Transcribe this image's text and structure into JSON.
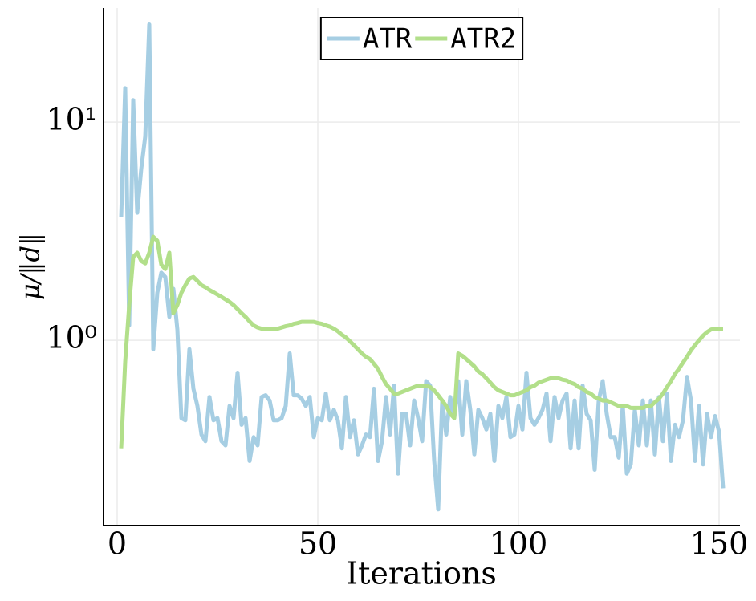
{
  "chart_data": {
    "type": "line",
    "xlabel": "Iterations",
    "ylabel": "μ/‖d‖",
    "x": [
      1,
      2,
      3,
      4,
      5,
      6,
      7,
      8,
      9,
      10,
      11,
      12,
      13,
      14,
      15,
      16,
      17,
      18,
      19,
      20,
      21,
      22,
      23,
      24,
      25,
      26,
      27,
      28,
      29,
      30,
      31,
      32,
      33,
      34,
      35,
      36,
      37,
      38,
      39,
      40,
      41,
      42,
      43,
      44,
      45,
      46,
      47,
      48,
      49,
      50,
      51,
      52,
      53,
      54,
      55,
      56,
      57,
      58,
      59,
      60,
      61,
      62,
      63,
      64,
      65,
      66,
      67,
      68,
      69,
      70,
      71,
      72,
      73,
      74,
      75,
      76,
      77,
      78,
      79,
      80,
      81,
      82,
      83,
      84,
      85,
      86,
      87,
      88,
      89,
      90,
      91,
      92,
      93,
      94,
      95,
      96,
      97,
      98,
      99,
      100,
      101,
      102,
      103,
      104,
      105,
      106,
      107,
      108,
      109,
      110,
      111,
      112,
      113,
      114,
      115,
      116,
      117,
      118,
      119,
      120,
      121,
      122,
      123,
      124,
      125,
      126,
      127,
      128,
      129,
      130,
      131,
      132,
      133,
      134,
      135,
      136,
      137,
      138,
      139,
      140,
      141,
      142,
      143,
      144,
      145,
      146,
      147,
      148,
      149,
      150,
      151
    ],
    "series": [
      {
        "name": "ATR",
        "color": "#a6cee3",
        "values": [
          3.68,
          14.3,
          1.17,
          12.6,
          3.84,
          6.1,
          8.6,
          28,
          0.91,
          1.65,
          2.04,
          1.95,
          1.28,
          1.72,
          1.12,
          0.44,
          0.43,
          0.91,
          0.6,
          0.5,
          0.37,
          0.345,
          0.55,
          0.43,
          0.44,
          0.345,
          0.33,
          0.5,
          0.44,
          0.71,
          0.41,
          0.44,
          0.28,
          0.36,
          0.33,
          0.55,
          0.56,
          0.53,
          0.43,
          0.43,
          0.44,
          0.5,
          0.87,
          0.56,
          0.56,
          0.54,
          0.5,
          0.55,
          0.36,
          0.44,
          0.43,
          0.57,
          0.43,
          0.48,
          0.43,
          0.32,
          0.55,
          0.36,
          0.43,
          0.3,
          0.33,
          0.37,
          0.36,
          0.6,
          0.28,
          0.345,
          0.55,
          0.37,
          0.62,
          0.245,
          0.46,
          0.46,
          0.33,
          0.53,
          0.44,
          0.345,
          0.65,
          0.62,
          0.28,
          0.168,
          0.53,
          0.37,
          0.55,
          0.44,
          0.65,
          0.37,
          0.65,
          0.48,
          0.3,
          0.48,
          0.44,
          0.39,
          0.46,
          0.28,
          0.5,
          0.44,
          0.55,
          0.36,
          0.37,
          0.5,
          0.39,
          0.71,
          0.44,
          0.41,
          0.44,
          0.48,
          0.57,
          0.345,
          0.55,
          0.44,
          0.53,
          0.57,
          0.32,
          0.53,
          0.32,
          0.62,
          0.46,
          0.43,
          0.255,
          0.53,
          0.65,
          0.46,
          0.36,
          0.36,
          0.29,
          0.5,
          0.245,
          0.27,
          0.48,
          0.33,
          0.53,
          0.33,
          0.53,
          0.3,
          0.55,
          0.345,
          0.57,
          0.28,
          0.41,
          0.36,
          0.43,
          0.68,
          0.53,
          0.28,
          0.5,
          0.27,
          0.46,
          0.36,
          0.45,
          0.38,
          0.21
        ]
      },
      {
        "name": "ATR2",
        "color": "#b2df8a",
        "values": [
          0.32,
          0.8,
          1.45,
          2.41,
          2.52,
          2.31,
          2.25,
          2.52,
          2.98,
          2.86,
          2.22,
          2.12,
          2.52,
          1.33,
          1.45,
          1.65,
          1.79,
          1.92,
          1.95,
          1.87,
          1.79,
          1.75,
          1.7,
          1.66,
          1.62,
          1.58,
          1.54,
          1.5,
          1.45,
          1.39,
          1.33,
          1.28,
          1.22,
          1.17,
          1.145,
          1.13,
          1.13,
          1.13,
          1.13,
          1.13,
          1.145,
          1.16,
          1.17,
          1.19,
          1.2,
          1.215,
          1.215,
          1.215,
          1.215,
          1.2,
          1.19,
          1.17,
          1.155,
          1.13,
          1.1,
          1.06,
          1.03,
          0.99,
          0.95,
          0.91,
          0.87,
          0.84,
          0.82,
          0.78,
          0.74,
          0.68,
          0.63,
          0.6,
          0.57,
          0.57,
          0.58,
          0.59,
          0.6,
          0.61,
          0.62,
          0.62,
          0.62,
          0.61,
          0.59,
          0.56,
          0.53,
          0.5,
          0.46,
          0.44,
          0.87,
          0.85,
          0.82,
          0.79,
          0.76,
          0.72,
          0.7,
          0.67,
          0.64,
          0.61,
          0.59,
          0.58,
          0.57,
          0.56,
          0.56,
          0.57,
          0.58,
          0.59,
          0.61,
          0.62,
          0.64,
          0.65,
          0.66,
          0.67,
          0.67,
          0.67,
          0.66,
          0.655,
          0.64,
          0.63,
          0.61,
          0.6,
          0.58,
          0.57,
          0.55,
          0.54,
          0.53,
          0.53,
          0.52,
          0.51,
          0.5,
          0.5,
          0.5,
          0.49,
          0.49,
          0.49,
          0.49,
          0.5,
          0.5,
          0.52,
          0.54,
          0.57,
          0.61,
          0.65,
          0.7,
          0.74,
          0.79,
          0.84,
          0.9,
          0.95,
          1.0,
          1.05,
          1.09,
          1.12,
          1.13,
          1.13,
          1.13
        ]
      }
    ],
    "xlim": [
      -3.4,
      155.2
    ],
    "xticks": [
      0,
      50,
      100,
      150
    ],
    "ylim": [
      0.1416,
      33.3
    ],
    "yticks": [
      {
        "value": 1,
        "label": "10⁰"
      },
      {
        "value": 10,
        "label": "10¹"
      }
    ],
    "log_y": true,
    "grid": true,
    "legend": "top"
  }
}
